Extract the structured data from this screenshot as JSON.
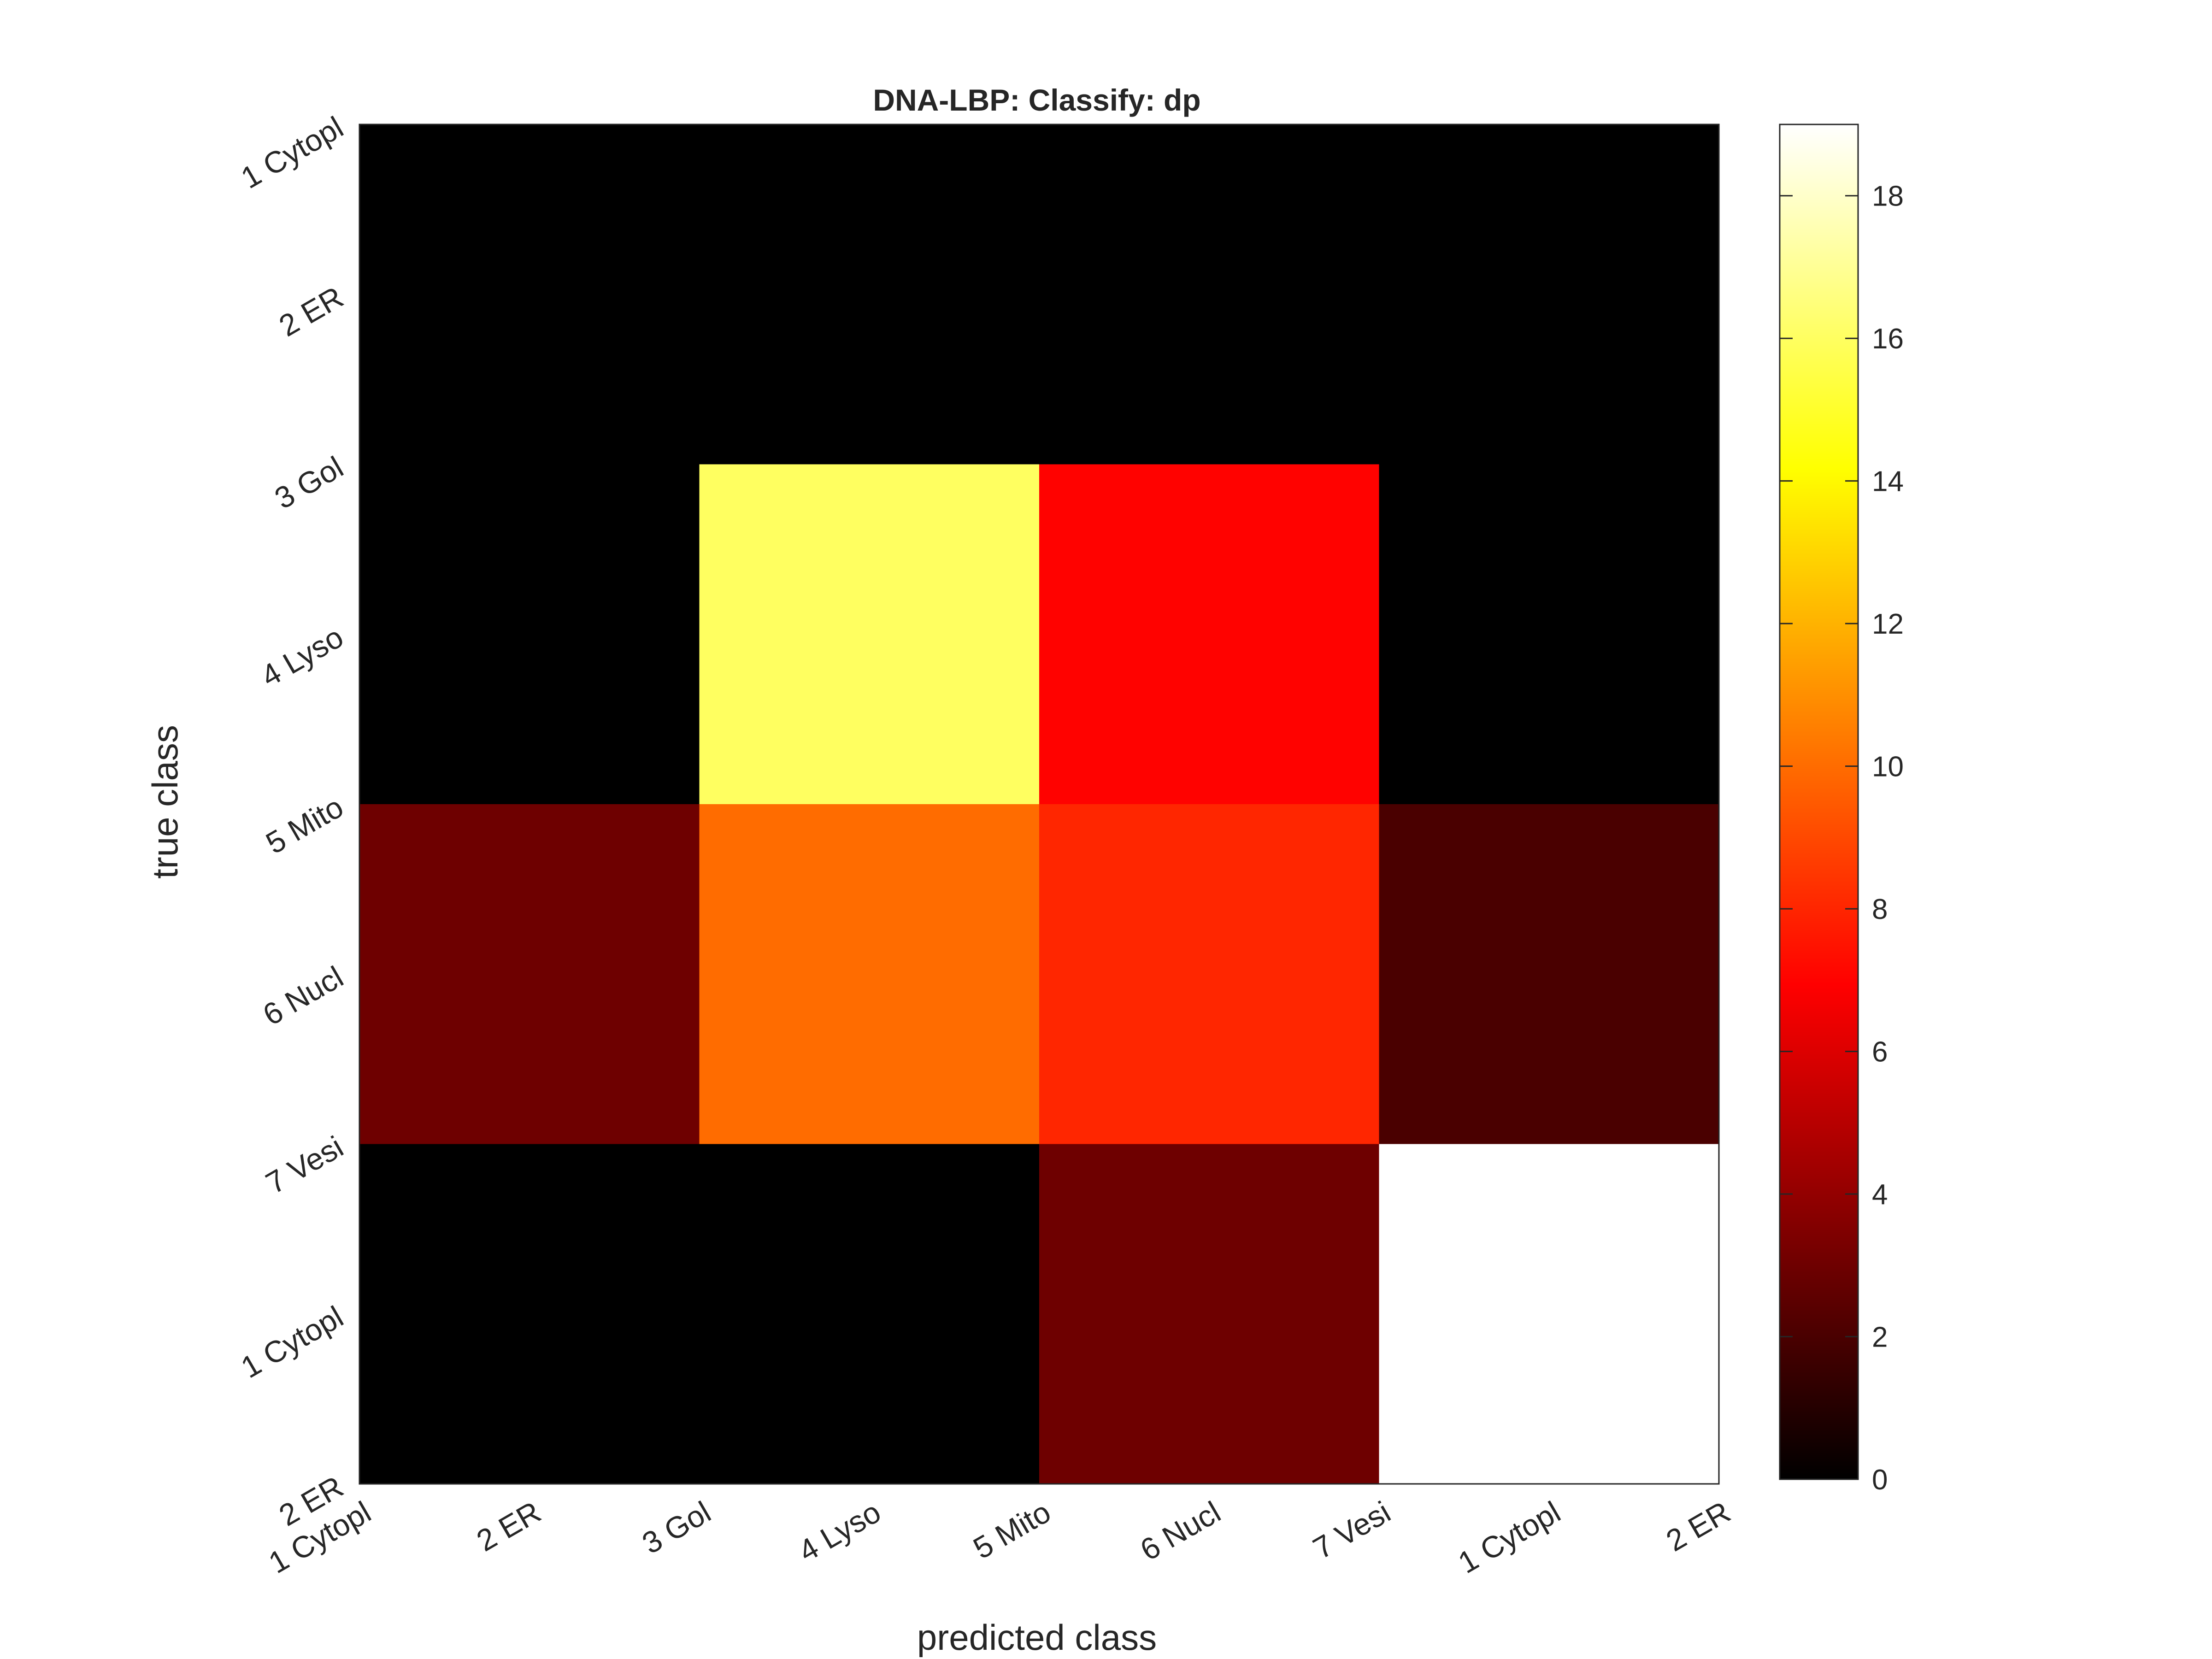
{
  "chart_data": {
    "type": "heatmap",
    "title": "DNA-LBP: Classify: dp",
    "xlabel": "predicted class",
    "ylabel": "true class",
    "colormap": "hot",
    "clim": [
      0,
      19
    ],
    "x_tick_labels": [
      "1 Cytopl",
      "2 ER",
      "3 Gol",
      "4 Lyso",
      "5 Mito",
      "6 Nucl",
      "7 Vesi",
      "1 Cytopl",
      "2 ER"
    ],
    "y_tick_labels": [
      "1 Cytopl",
      "2 ER",
      "3 Gol",
      "4 Lyso",
      "5 Mito",
      "6 Nucl",
      "7 Vesi",
      "1 Cytopl",
      "2 ER"
    ],
    "colorbar_ticks": [
      0,
      2,
      4,
      6,
      8,
      10,
      12,
      14,
      16,
      18
    ],
    "matrix": [
      [
        0,
        0,
        0,
        0
      ],
      [
        0,
        16,
        7,
        0
      ],
      [
        3,
        10,
        8,
        2
      ],
      [
        0,
        0,
        3,
        19
      ]
    ]
  }
}
